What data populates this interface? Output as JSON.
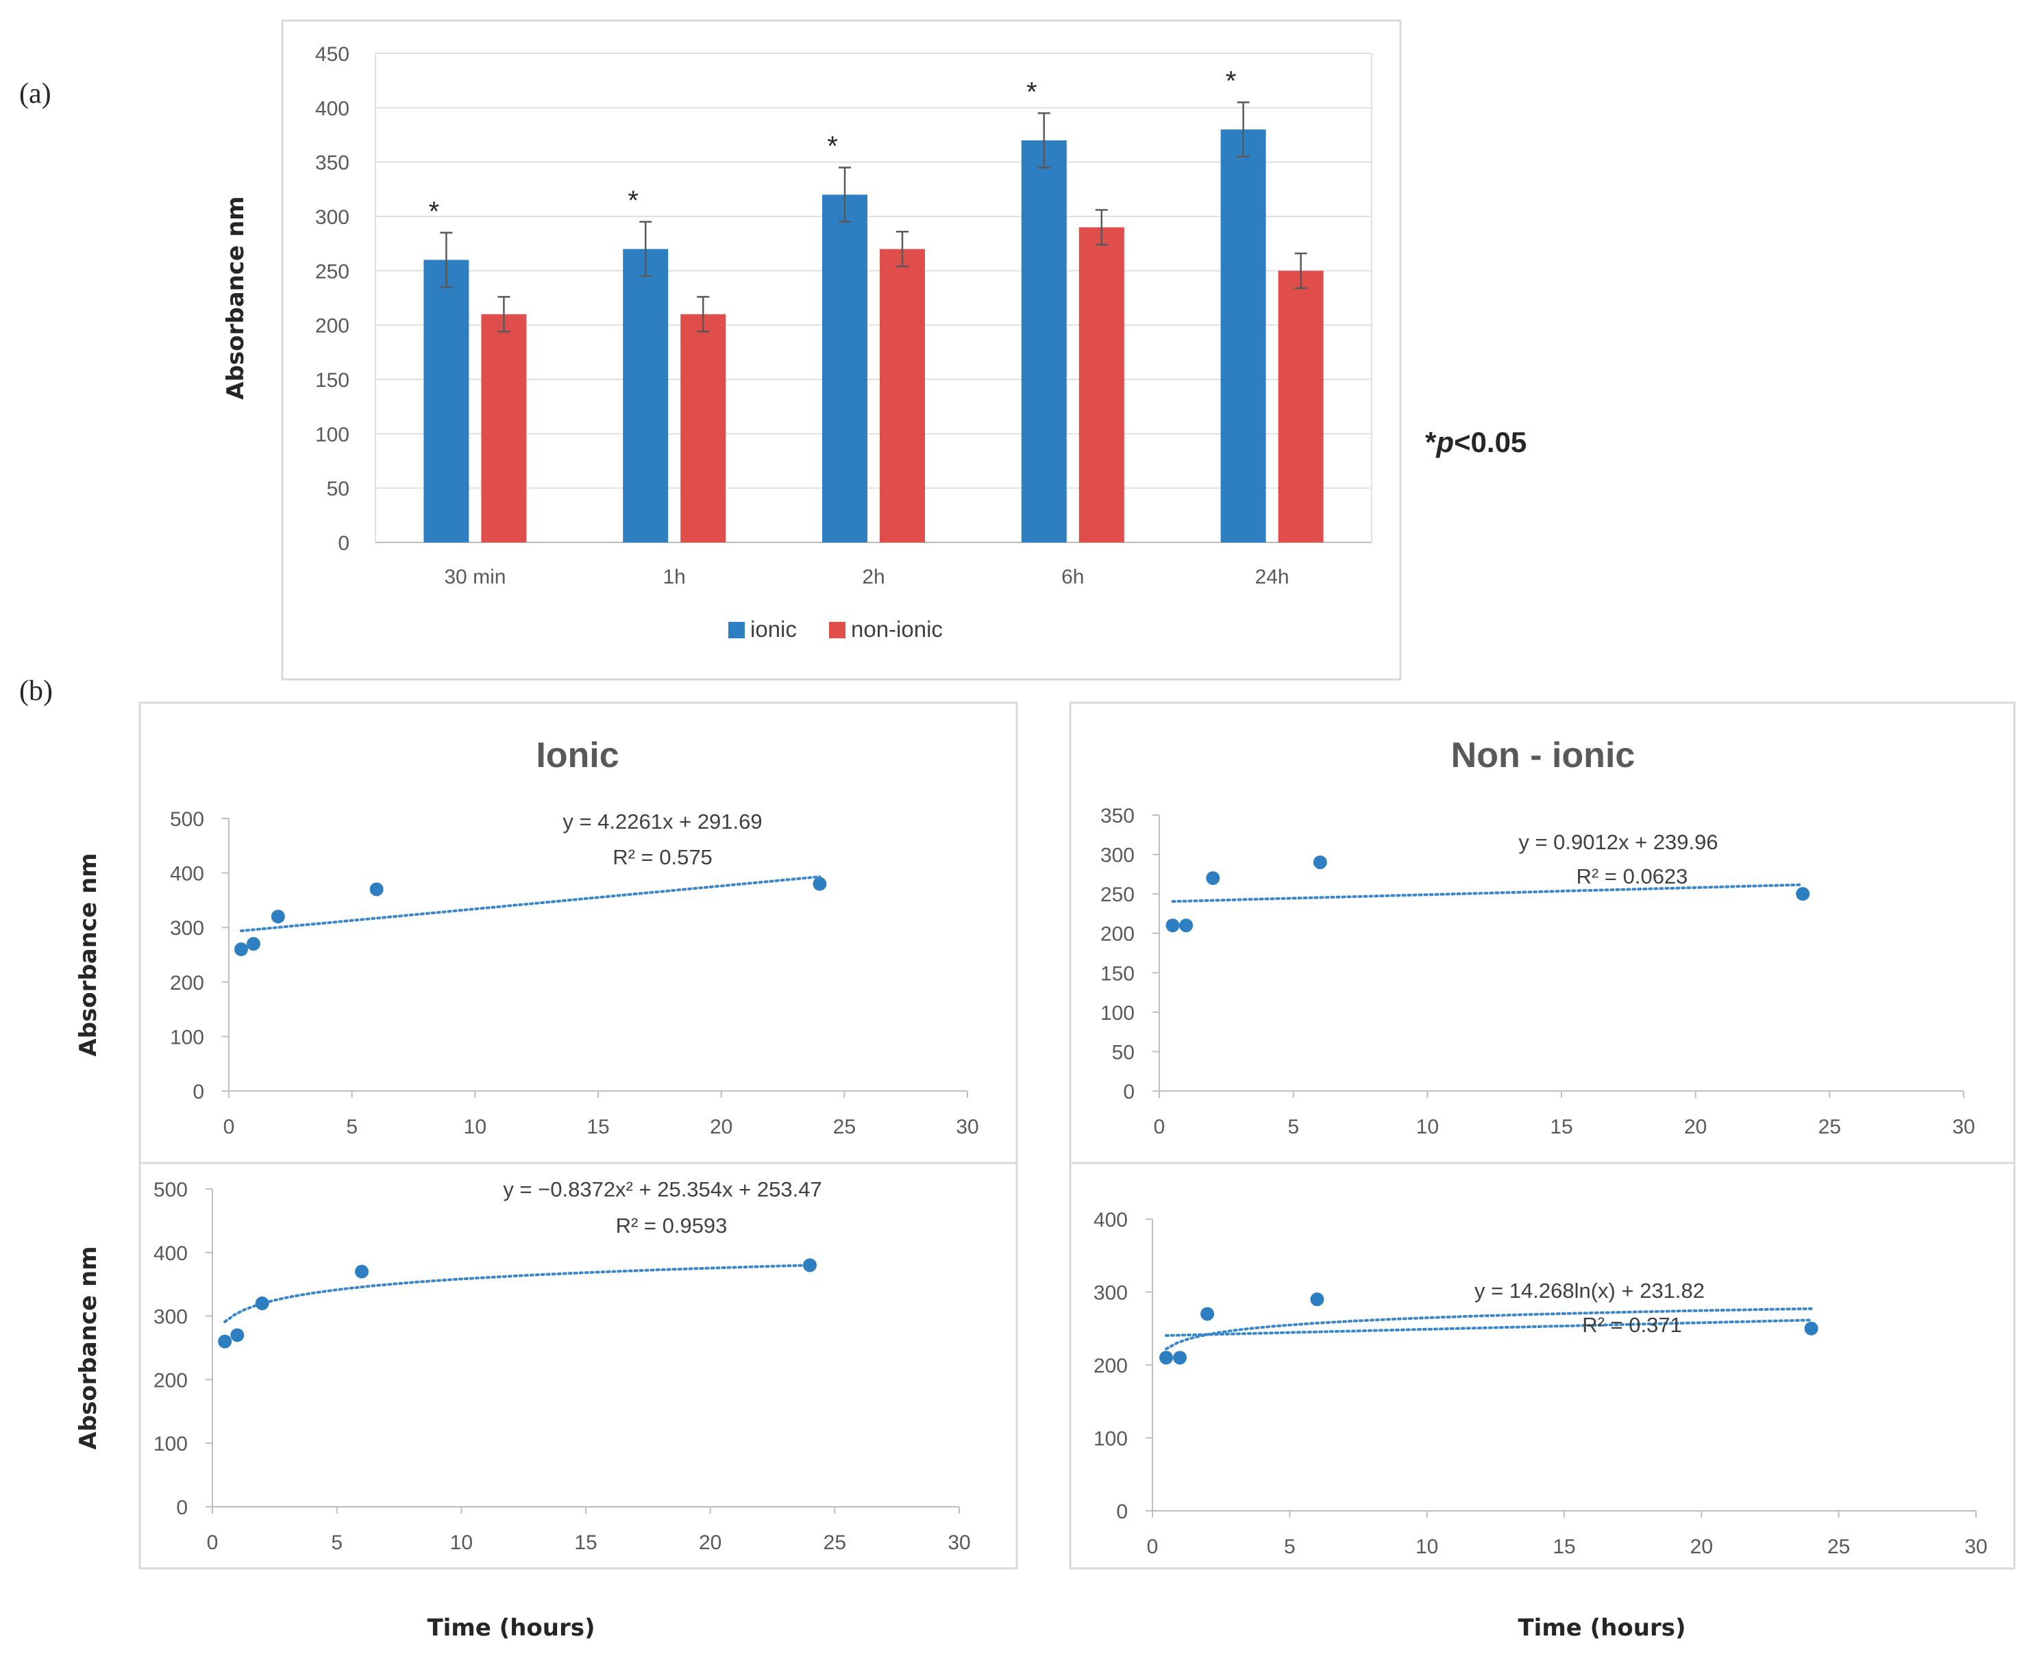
{
  "panel_labels": {
    "a": "(a)",
    "b": "(b)"
  },
  "significance_note": {
    "star": "*",
    "p": "p",
    "rest": "<0.05"
  },
  "colors": {
    "ionic": "#2E7FC1",
    "non_ionic": "#E04E4B",
    "trend": "#3A86C8",
    "frame": "#D9D9D9",
    "grid": "#E0E0E0",
    "axis": "#BFBFBF"
  },
  "chart_data": [
    {
      "id": "bar",
      "type": "bar",
      "title": "",
      "ylabel": "Absorbance   nm",
      "xlabel": "",
      "ylim": [
        0,
        450
      ],
      "yticks": [
        0,
        50,
        100,
        150,
        200,
        250,
        300,
        350,
        400,
        450
      ],
      "categories": [
        "30 min",
        "1h",
        "2h",
        "6h",
        "24h"
      ],
      "series": [
        {
          "name": "ionic",
          "values": [
            260,
            270,
            320,
            370,
            380
          ],
          "errors": [
            25,
            25,
            25,
            25,
            25
          ],
          "significance": [
            "*",
            "*",
            "*",
            "*",
            "*"
          ]
        },
        {
          "name": "non-ionic",
          "values": [
            210,
            210,
            270,
            290,
            250
          ],
          "errors": [
            16,
            16,
            16,
            16,
            16
          ]
        }
      ],
      "legend": "bottom"
    },
    {
      "id": "sc1",
      "type": "scatter",
      "title": "Ionic",
      "ylabel": "Absorbance   nm",
      "xlim": [
        0,
        30
      ],
      "xticks": [
        0,
        5,
        10,
        15,
        20,
        25,
        30
      ],
      "ylim": [
        0,
        500
      ],
      "yticks": [
        0,
        100,
        200,
        300,
        400,
        500
      ],
      "x": [
        0.5,
        1,
        2,
        6,
        24
      ],
      "y": [
        260,
        270,
        320,
        370,
        380
      ],
      "trendline": {
        "kind": "linear",
        "equation": "y = 4.2261x + 291.69",
        "r2": "R² = 0.575"
      }
    },
    {
      "id": "sc2",
      "type": "scatter",
      "title": "Non - ionic",
      "ylabel": "",
      "xlim": [
        0,
        30
      ],
      "xticks": [
        0,
        5,
        10,
        15,
        20,
        25,
        30
      ],
      "ylim": [
        0,
        350
      ],
      "yticks": [
        0,
        50,
        100,
        150,
        200,
        250,
        300,
        350
      ],
      "x": [
        0.5,
        1,
        2,
        6,
        24
      ],
      "y": [
        210,
        210,
        270,
        290,
        250
      ],
      "trendline": {
        "kind": "linear",
        "equation": "y = 0.9012x + 239.96",
        "r2": "R² = 0.0623"
      }
    },
    {
      "id": "sc3",
      "type": "scatter",
      "title": "",
      "ylabel": "Absorbance  nm",
      "xlabel": "Time (hours)",
      "xlim": [
        0,
        30
      ],
      "xticks": [
        0,
        5,
        10,
        15,
        20,
        25,
        30
      ],
      "ylim": [
        0,
        500
      ],
      "yticks": [
        0,
        100,
        200,
        300,
        400,
        500
      ],
      "x": [
        0.5,
        1,
        2,
        6,
        24
      ],
      "y": [
        260,
        270,
        320,
        370,
        380
      ],
      "trendline": {
        "kind": "poly2",
        "equation": "y = −0.8372x² + 25.354x + 253.47",
        "r2": "R² = 0.9593"
      }
    },
    {
      "id": "sc4",
      "type": "scatter",
      "title": "",
      "ylabel": "",
      "xlabel": "Time (hours)",
      "xlim": [
        0,
        30
      ],
      "xticks": [
        0,
        5,
        10,
        15,
        20,
        25,
        30
      ],
      "ylim": [
        0,
        400
      ],
      "yticks": [
        0,
        100,
        200,
        300,
        400
      ],
      "x": [
        0.5,
        1,
        2,
        6,
        24
      ],
      "y": [
        210,
        210,
        270,
        290,
        250
      ],
      "trendline": {
        "kind": "log",
        "equation": "y = 14.268ln(x) + 231.82",
        "r2": "R² = 0.371"
      }
    }
  ]
}
